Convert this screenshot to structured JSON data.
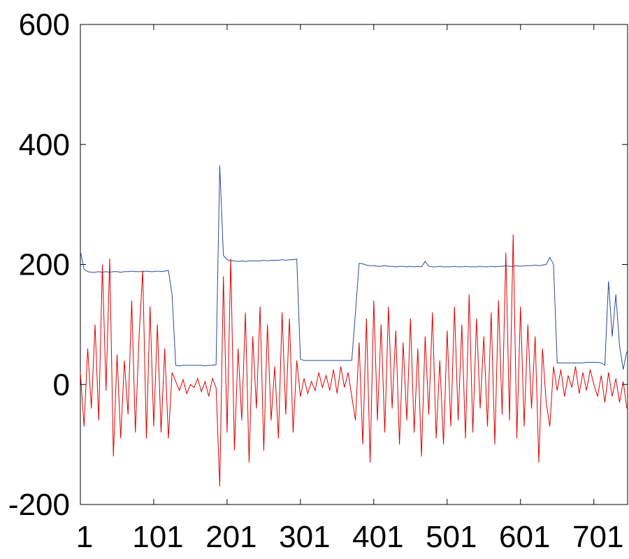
{
  "chart_data": {
    "type": "line",
    "x": [
      1,
      6,
      11,
      16,
      21,
      26,
      31,
      36,
      41,
      46,
      51,
      56,
      61,
      66,
      71,
      76,
      81,
      86,
      91,
      96,
      101,
      106,
      111,
      116,
      121,
      126,
      131,
      136,
      141,
      146,
      151,
      156,
      161,
      166,
      171,
      176,
      181,
      186,
      191,
      196,
      201,
      206,
      211,
      216,
      221,
      226,
      231,
      236,
      241,
      246,
      251,
      256,
      261,
      266,
      271,
      276,
      281,
      286,
      291,
      296,
      301,
      306,
      311,
      316,
      321,
      326,
      331,
      336,
      341,
      346,
      351,
      356,
      361,
      366,
      371,
      376,
      381,
      386,
      391,
      396,
      401,
      406,
      411,
      416,
      421,
      426,
      431,
      436,
      441,
      446,
      451,
      456,
      461,
      466,
      471,
      476,
      481,
      486,
      491,
      496,
      501,
      506,
      511,
      516,
      521,
      526,
      531,
      536,
      541,
      546,
      551,
      556,
      561,
      566,
      571,
      576,
      581,
      586,
      591,
      596,
      601,
      606,
      611,
      616,
      621,
      626,
      631,
      636,
      641,
      646,
      651,
      656,
      661,
      666,
      671,
      676,
      681,
      686,
      691,
      696,
      701,
      706,
      711,
      716,
      721,
      726,
      731,
      736,
      741,
      746
    ],
    "series": [
      {
        "color": "#2b4a9a",
        "values": [
          222,
          192,
          188,
          187,
          187,
          188,
          187,
          188,
          187,
          188,
          188,
          187,
          188,
          188,
          189,
          188,
          188,
          188,
          189,
          188,
          188,
          189,
          188,
          189,
          190,
          150,
          32,
          31,
          32,
          32,
          32,
          32,
          32,
          32,
          31,
          32,
          32,
          33,
          365,
          215,
          208,
          206,
          206,
          205,
          206,
          205,
          206,
          206,
          206,
          206,
          207,
          206,
          207,
          207,
          207,
          208,
          207,
          208,
          208,
          209,
          42,
          40,
          40,
          40,
          40,
          40,
          40,
          40,
          40,
          40,
          40,
          40,
          40,
          40,
          40,
          120,
          202,
          201,
          199,
          198,
          198,
          197,
          197,
          198,
          197,
          197,
          196,
          197,
          197,
          196,
          197,
          196,
          197,
          196,
          205,
          197,
          196,
          196,
          197,
          196,
          196,
          196,
          197,
          196,
          196,
          197,
          196,
          196,
          196,
          197,
          196,
          196,
          197,
          196,
          197,
          197,
          198,
          197,
          197,
          198,
          197,
          198,
          198,
          198,
          199,
          198,
          199,
          200,
          212,
          200,
          36,
          36,
          36,
          36,
          36,
          36,
          36,
          36,
          37,
          37,
          37,
          37,
          36,
          32,
          172,
          80,
          150,
          65,
          25,
          55
        ]
      },
      {
        "color": "#e00000",
        "values": [
          20,
          -70,
          60,
          -40,
          100,
          -60,
          200,
          -10,
          210,
          -120,
          50,
          -90,
          40,
          -50,
          140,
          -80,
          80,
          190,
          -90,
          130,
          -70,
          100,
          -80,
          60,
          -90,
          20,
          5,
          -10,
          8,
          -15,
          0,
          -5,
          10,
          -12,
          5,
          -20,
          10,
          -5,
          -170,
          180,
          -80,
          210,
          -110,
          60,
          -60,
          120,
          -130,
          80,
          -40,
          130,
          -110,
          100,
          -60,
          30,
          -90,
          120,
          -50,
          110,
          -80,
          40,
          -20,
          10,
          -15,
          5,
          -10,
          20,
          -5,
          15,
          -10,
          25,
          -15,
          30,
          -5,
          20,
          -20,
          -60,
          70,
          -100,
          110,
          -130,
          140,
          -60,
          100,
          -80,
          130,
          -40,
          90,
          -100,
          70,
          -60,
          110,
          -80,
          60,
          -120,
          80,
          -50,
          120,
          -90,
          40,
          -100,
          90,
          -70,
          130,
          -60,
          100,
          -90,
          150,
          -80,
          110,
          -40,
          80,
          -70,
          120,
          -100,
          140,
          -50,
          220,
          -60,
          250,
          -90,
          130,
          -70,
          100,
          -40,
          80,
          -130,
          60,
          -30,
          -70,
          30,
          -10,
          25,
          -20,
          15,
          -5,
          30,
          -15,
          20,
          -10,
          25,
          0,
          -20,
          15,
          -30,
          20,
          -20,
          10,
          -30,
          5,
          -40
        ]
      }
    ],
    "xlim": [
      1,
      747
    ],
    "xticks": [
      1,
      101,
      201,
      301,
      401,
      501,
      601,
      701
    ],
    "ylim": [
      -200,
      600
    ],
    "yticks": [
      600,
      400,
      200,
      0,
      -200
    ]
  }
}
